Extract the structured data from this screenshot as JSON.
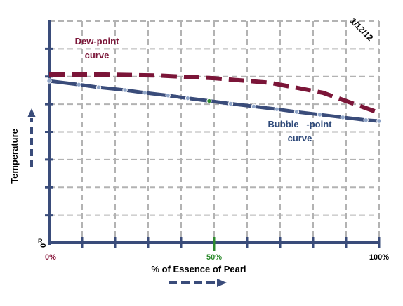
{
  "chart_data": {
    "type": "line",
    "title": "",
    "xlabel": "% of Essence of Pearl",
    "ylabel": "Temperature",
    "xlim": [
      0,
      100
    ],
    "x_ticks": [
      {
        "value": 0,
        "label": "0%",
        "color": "#8b1a3e"
      },
      {
        "value": 50,
        "label": "50%",
        "color": "#2e8b2e"
      },
      {
        "value": 100,
        "label": "100%",
        "color": "#000000"
      }
    ],
    "origin_label": "R",
    "date_stamp": "1/12/12",
    "grid": true,
    "series": [
      {
        "name": "Dew-point curve",
        "label_lines": [
          "Dew-point",
          "curve"
        ],
        "style": "dashed",
        "color": "#7b1538",
        "x": [
          0,
          17,
          33,
          50,
          67,
          83,
          100
        ],
        "y": [
          1.0,
          1.0,
          0.99,
          0.96,
          0.91,
          0.8,
          0.58
        ]
      },
      {
        "name": "Bubble-point curve",
        "label_lines": [
          "Bubble   -point",
          "curve"
        ],
        "style": "solid",
        "color": "#3a4c7a",
        "marker_color": "#8fa5c8",
        "highlight_x": 50,
        "highlight_color": "#2e8b2e",
        "x": [
          0,
          9,
          15,
          23,
          29,
          36,
          42,
          48.5,
          55,
          62,
          69,
          75,
          82,
          89,
          96,
          100
        ],
        "y": [
          0.93,
          0.89,
          0.86,
          0.83,
          0.8,
          0.77,
          0.74,
          0.71,
          0.68,
          0.65,
          0.62,
          0.59,
          0.56,
          0.53,
          0.5,
          0.49
        ]
      }
    ]
  },
  "colors": {
    "axis": "#3a4c7a",
    "grid": "#b3b3b3",
    "arrow": "#3a4c7a"
  }
}
